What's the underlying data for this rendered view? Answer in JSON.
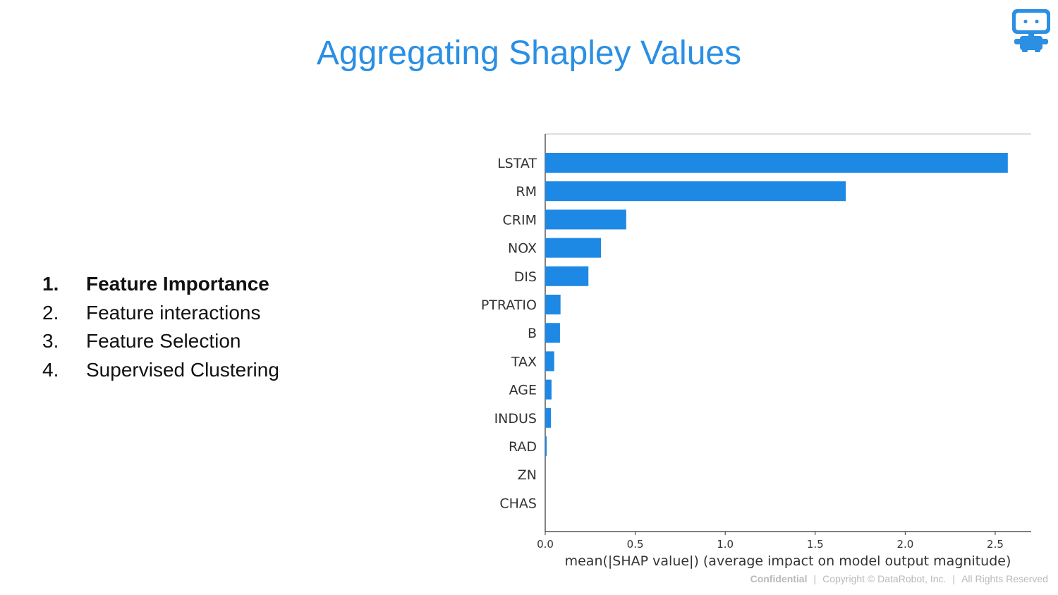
{
  "slide": {
    "title": "Aggregating Shapley Values",
    "logo_icon": "datarobot-robot-icon",
    "accent_color": "#2b8fe3"
  },
  "list": {
    "items": [
      {
        "num": "1.",
        "label": "Feature Importance"
      },
      {
        "num": "2.",
        "label": "Feature interactions"
      },
      {
        "num": "3.",
        "label": "Feature Selection"
      },
      {
        "num": "4.",
        "label": "Supervised Clustering"
      }
    ]
  },
  "chart_data": {
    "type": "bar",
    "orientation": "horizontal",
    "categories": [
      "LSTAT",
      "RM",
      "CRIM",
      "NOX",
      "DIS",
      "PTRATIO",
      "B",
      "TAX",
      "AGE",
      "INDUS",
      "RAD",
      "ZN",
      "CHAS"
    ],
    "values": [
      2.57,
      1.67,
      0.45,
      0.31,
      0.24,
      0.085,
      0.082,
      0.05,
      0.035,
      0.032,
      0.008,
      0.0,
      0.0
    ],
    "xlabel": "mean(|SHAP value|) (average impact on model output magnitude)",
    "ylabel": "",
    "xlim": [
      0,
      2.7
    ],
    "xticks": [
      "0.0",
      "0.5",
      "1.0",
      "1.5",
      "2.0",
      "2.5"
    ],
    "bar_color": "#1e88e5",
    "grid": false
  },
  "footer": {
    "confidential": "Confidential",
    "copyright": "Copyright © DataRobot, Inc.",
    "rights": "All Rights Reserved"
  }
}
